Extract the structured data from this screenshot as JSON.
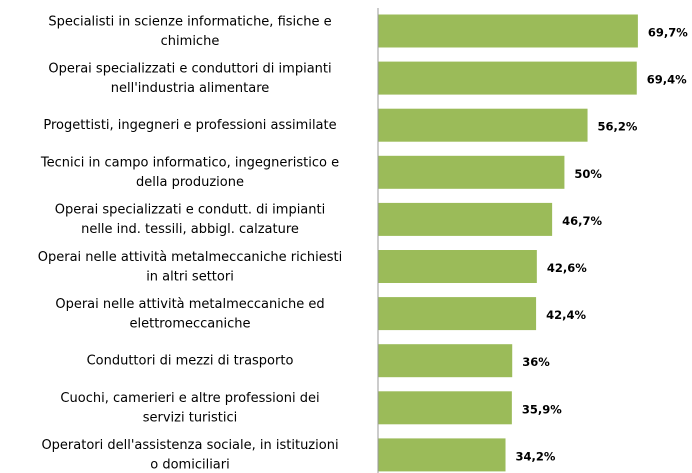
{
  "chart_data": {
    "type": "bar",
    "orientation": "horizontal",
    "categories": [
      "Specialisti in scienze informatiche, fisiche e\nchimiche",
      "Operai specializzati e conduttori di impianti\nnell'industria alimentare",
      "Progettisti, ingegneri e professioni assimilate",
      "Tecnici in campo informatico, ingegneristico e\ndella produzione",
      "Operai specializzati e condutt. di impianti\nnelle ind. tessili, abbigl. calzature",
      "Operai nelle attività metalmeccaniche richiesti\nin altri settori",
      "Operai nelle attività metalmeccaniche ed\nelettromeccaniche",
      "Conduttori di mezzi di trasporto",
      "Cuochi, camerieri e altre professioni dei\nservizi turistici",
      "Operatori dell'assistenza sociale, in istituzioni\no domiciliari"
    ],
    "values": [
      69.7,
      69.4,
      56.2,
      50,
      46.7,
      42.6,
      42.4,
      36,
      35.9,
      34.2
    ],
    "value_labels": [
      "69,7%",
      "69,4%",
      "56,2%",
      "50%",
      "46,7%",
      "42,6%",
      "42,4%",
      "36%",
      "35,9%",
      "34,2%"
    ],
    "color": "#9bbb59",
    "xlim": [
      0,
      70
    ]
  }
}
